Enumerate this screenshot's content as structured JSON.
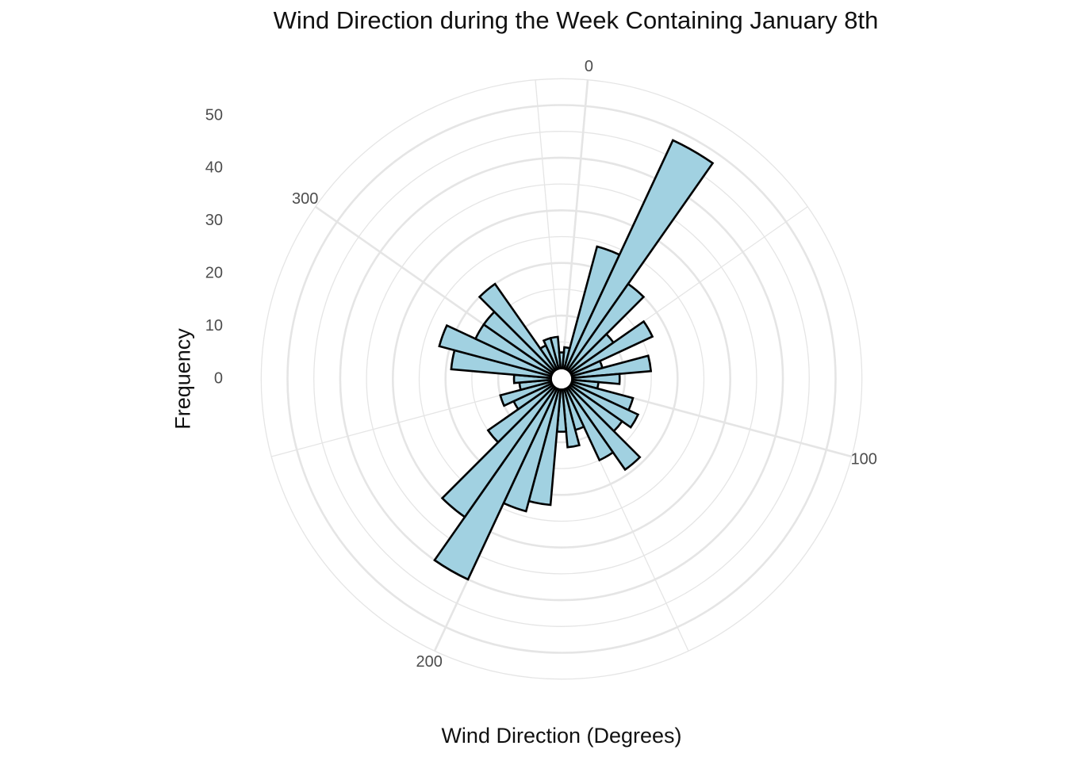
{
  "chart_data": {
    "type": "bar",
    "subtype": "polar-rose",
    "title": "Wind Direction during the Week Containing January 8th",
    "xlabel": "Wind Direction (Degrees)",
    "ylabel": "Frequency",
    "angle_ticks": [
      "0",
      "100",
      "200",
      "300"
    ],
    "radial_ticks": [
      "0",
      "10",
      "20",
      "30",
      "40",
      "50"
    ],
    "radial_range": [
      0,
      55
    ],
    "grid": true,
    "bin_width_degrees": 10,
    "categories": [
      0,
      10,
      20,
      30,
      40,
      50,
      60,
      70,
      80,
      90,
      100,
      110,
      120,
      130,
      140,
      150,
      160,
      170,
      180,
      190,
      200,
      210,
      220,
      230,
      240,
      250,
      260,
      270,
      280,
      290,
      300,
      310,
      320,
      330,
      340,
      350
    ],
    "values": [
      4,
      24,
      48,
      20,
      10,
      17,
      6,
      15,
      9,
      5,
      12,
      14,
      12,
      19,
      15,
      8,
      11,
      8,
      22,
      24,
      40,
      30,
      15,
      8,
      10,
      6,
      7,
      19,
      22,
      16,
      16,
      20,
      5,
      6,
      6,
      3
    ],
    "colors": {
      "bar_fill": "#a1d1e1",
      "bar_stroke": "#000000",
      "grid": "#e5e5e5"
    }
  }
}
